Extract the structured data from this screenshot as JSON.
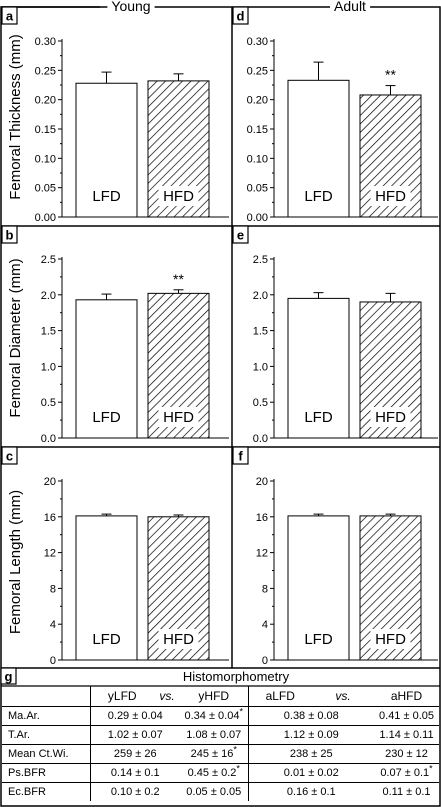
{
  "figure": {
    "columns": [
      "Young",
      "Adult"
    ],
    "panel_letters": [
      "a",
      "b",
      "c",
      "d",
      "e",
      "f"
    ],
    "ylabels": [
      "Femoral Thickness (mm)",
      "Femoral Diameter (mm)",
      "Femoral Length (mm)"
    ],
    "bar_labels": [
      "LFD",
      "HFD"
    ],
    "significance_mark": "**"
  },
  "chart_data": [
    {
      "panel": "a",
      "type": "bar",
      "categories": [
        "LFD",
        "HFD"
      ],
      "values": [
        0.228,
        0.232
      ],
      "errors": [
        0.019,
        0.012
      ],
      "ylim": [
        0,
        0.3
      ],
      "yticks": [
        "0.00",
        "0.05",
        "0.10",
        "0.15",
        "0.20",
        "0.25",
        "0.30"
      ],
      "ylabel": "Femoral Thickness (mm)",
      "column": "Young",
      "significance": null
    },
    {
      "panel": "d",
      "type": "bar",
      "categories": [
        "LFD",
        "HFD"
      ],
      "values": [
        0.233,
        0.208
      ],
      "errors": [
        0.031,
        0.016
      ],
      "ylim": [
        0,
        0.3
      ],
      "yticks": [
        "0.00",
        "0.05",
        "0.10",
        "0.15",
        "0.20",
        "0.25",
        "0.30"
      ],
      "ylabel": "",
      "column": "Adult",
      "significance": "**"
    },
    {
      "panel": "b",
      "type": "bar",
      "categories": [
        "LFD",
        "HFD"
      ],
      "values": [
        1.93,
        2.02
      ],
      "errors": [
        0.08,
        0.05
      ],
      "ylim": [
        0,
        2.5
      ],
      "yticks": [
        "0.0",
        "0.5",
        "1.0",
        "1.5",
        "2.0",
        "2.5"
      ],
      "ylabel": "Femoral Diameter (mm)",
      "column": "Young",
      "significance": "**"
    },
    {
      "panel": "e",
      "type": "bar",
      "categories": [
        "LFD",
        "HFD"
      ],
      "values": [
        1.95,
        1.9
      ],
      "errors": [
        0.08,
        0.12
      ],
      "ylim": [
        0,
        2.5
      ],
      "yticks": [
        "0.0",
        "0.5",
        "1.0",
        "1.5",
        "2.0",
        "2.5"
      ],
      "ylabel": "",
      "column": "Adult",
      "significance": null
    },
    {
      "panel": "c",
      "type": "bar",
      "categories": [
        "LFD",
        "HFD"
      ],
      "values": [
        16.1,
        16.0
      ],
      "errors": [
        0.2,
        0.2
      ],
      "ylim": [
        0,
        20
      ],
      "yticks": [
        "0",
        "4",
        "8",
        "12",
        "16",
        "20"
      ],
      "ylabel": "Femoral Length (mm)",
      "column": "Young",
      "significance": null
    },
    {
      "panel": "f",
      "type": "bar",
      "categories": [
        "LFD",
        "HFD"
      ],
      "values": [
        16.1,
        16.1
      ],
      "errors": [
        0.2,
        0.2
      ],
      "ylim": [
        0,
        20
      ],
      "yticks": [
        "0",
        "4",
        "8",
        "12",
        "16",
        "20"
      ],
      "ylabel": "",
      "column": "Adult",
      "significance": null
    }
  ],
  "table": {
    "letter": "g",
    "title": "Histomorphometry",
    "headers": {
      "young": {
        "a": "yLFD",
        "vs": "vs.",
        "b": "yHFD"
      },
      "adult": {
        "a": "aLFD",
        "vs": "vs.",
        "b": "aHFD"
      }
    },
    "rows": [
      {
        "label": "Ma.Ar.",
        "ylfd": "0.29 ± 0.04",
        "yhfd": "0.34 ± 0.04",
        "yhfd_star": "*",
        "alfd": "0.38 ± 0.08",
        "ahfd": "0.41 ± 0.05",
        "ahfd_star": ""
      },
      {
        "label": "T.Ar.",
        "ylfd": "1.02 ± 0.07",
        "yhfd": "1.08 ± 0.07",
        "yhfd_star": "",
        "alfd": "1.12 ± 0.09",
        "ahfd": "1.14 ± 0.11",
        "ahfd_star": ""
      },
      {
        "label": "Mean Ct.Wi.",
        "ylfd": "259 ± 26",
        "yhfd": "245 ± 16",
        "yhfd_star": "*",
        "alfd": "238 ± 25",
        "ahfd": "230 ± 12",
        "ahfd_star": ""
      },
      {
        "label": "Ps.BFR",
        "ylfd": "0.14 ± 0.1",
        "yhfd": "0.45 ± 0.2",
        "yhfd_star": "*",
        "alfd": "0.01 ± 0.02",
        "ahfd": "0.07 ± 0.1",
        "ahfd_star": "*"
      },
      {
        "label": "Ec.BFR",
        "ylfd": "0.10 ± 0.2",
        "yhfd": "0.05 ± 0.05",
        "yhfd_star": "",
        "alfd": "0.16 ± 0.1",
        "ahfd": "0.11 ± 0.1",
        "ahfd_star": ""
      }
    ]
  }
}
